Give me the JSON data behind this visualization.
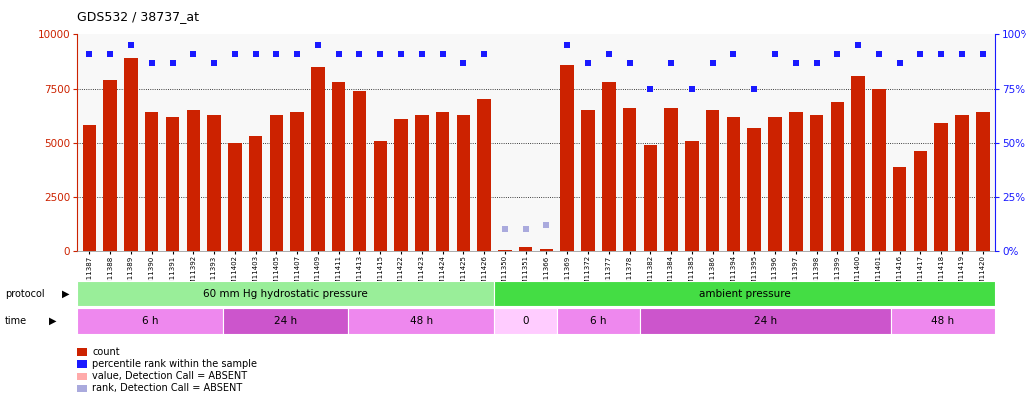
{
  "title": "GDS532 / 38737_at",
  "categories": [
    "GSM11387",
    "GSM11388",
    "GSM11389",
    "GSM11390",
    "GSM11391",
    "GSM11392",
    "GSM11393",
    "GSM11402",
    "GSM11403",
    "GSM11405",
    "GSM11407",
    "GSM11409",
    "GSM11411",
    "GSM11413",
    "GSM11415",
    "GSM11422",
    "GSM11423",
    "GSM11424",
    "GSM11425",
    "GSM11426",
    "GSM11350",
    "GSM11351",
    "GSM11366",
    "GSM11369",
    "GSM11372",
    "GSM11377",
    "GSM11378",
    "GSM11382",
    "GSM11384",
    "GSM11385",
    "GSM11386",
    "GSM11394",
    "GSM11395",
    "GSM11396",
    "GSM11397",
    "GSM11398",
    "GSM11399",
    "GSM11400",
    "GSM11401",
    "GSM11416",
    "GSM11417",
    "GSM11418",
    "GSM11419",
    "GSM11420"
  ],
  "bar_values": [
    5800,
    7900,
    8900,
    6400,
    6200,
    6500,
    6300,
    5000,
    5300,
    6300,
    6400,
    8500,
    7800,
    7400,
    5100,
    6100,
    6300,
    6400,
    6300,
    7000,
    50,
    200,
    100,
    8600,
    6500,
    7800,
    6600,
    4900,
    6600,
    5100,
    6500,
    6200,
    5700,
    6200,
    6400,
    6300,
    6900,
    8100,
    7500,
    3900,
    4600,
    5900,
    6300,
    6400
  ],
  "percentile_values": [
    91,
    91,
    95,
    87,
    87,
    91,
    87,
    91,
    91,
    91,
    91,
    95,
    91,
    91,
    91,
    91,
    91,
    91,
    87,
    91,
    10,
    10,
    12,
    95,
    87,
    91,
    87,
    75,
    87,
    75,
    87,
    91,
    75,
    91,
    87,
    87,
    91,
    95,
    91,
    87,
    91,
    91,
    91,
    91
  ],
  "absent_indices": [
    20,
    21,
    22
  ],
  "bar_color": "#cc2200",
  "percentile_color": "#1a1aff",
  "absent_bar_color": "#cc2200",
  "absent_rank_color": "#aaaadd",
  "ylim_left": [
    0,
    10000
  ],
  "ylim_right": [
    0,
    100
  ],
  "yticks_left": [
    0,
    2500,
    5000,
    7500,
    10000
  ],
  "yticks_right": [
    0,
    25,
    50,
    75,
    100
  ],
  "protocol_groups": [
    {
      "label": "60 mm Hg hydrostatic pressure",
      "start": 0,
      "end": 19,
      "color": "#99ee99"
    },
    {
      "label": "ambient pressure",
      "start": 20,
      "end": 43,
      "color": "#44dd44"
    }
  ],
  "time_groups": [
    {
      "label": "6 h",
      "start": 0,
      "end": 6,
      "color": "#ee88ee"
    },
    {
      "label": "24 h",
      "start": 7,
      "end": 12,
      "color": "#cc55cc"
    },
    {
      "label": "48 h",
      "start": 13,
      "end": 19,
      "color": "#ee88ee"
    },
    {
      "label": "0",
      "start": 20,
      "end": 22,
      "color": "#ffccff"
    },
    {
      "label": "6 h",
      "start": 23,
      "end": 26,
      "color": "#ee88ee"
    },
    {
      "label": "24 h",
      "start": 27,
      "end": 38,
      "color": "#cc55cc"
    },
    {
      "label": "48 h",
      "start": 39,
      "end": 43,
      "color": "#ee88ee"
    }
  ],
  "legend_items": [
    {
      "color": "#cc2200",
      "label": "count"
    },
    {
      "color": "#1a1aff",
      "label": "percentile rank within the sample"
    },
    {
      "color": "#ffaaaa",
      "label": "value, Detection Call = ABSENT"
    },
    {
      "color": "#aaaadd",
      "label": "rank, Detection Call = ABSENT"
    }
  ],
  "chart_bg": "#ffffff",
  "fig_bg": "#ffffff"
}
